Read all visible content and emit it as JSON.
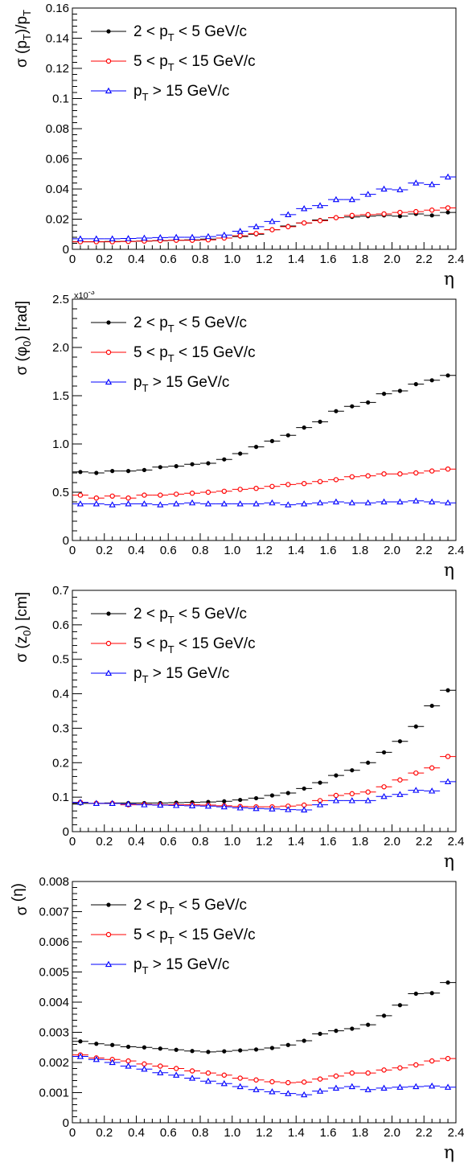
{
  "legend": [
    {
      "pre": "2 < p",
      "sub": "T",
      "post": " < 5 GeV/c",
      "color": "#000000",
      "marker": "dot"
    },
    {
      "pre": "5 < p",
      "sub": "T",
      "post": " < 15 GeV/c",
      "color": "#ff0000",
      "marker": "circle"
    },
    {
      "pre": "p",
      "sub": "T",
      "post": " > 15 GeV/c",
      "color": "#0000ff",
      "marker": "triangle"
    }
  ],
  "chart_data": [
    {
      "type": "scatter",
      "ylabel": {
        "parts": [
          "σ (p",
          "T",
          ")/p",
          "T"
        ]
      },
      "xlabel": "η",
      "xlim": [
        0,
        2.4
      ],
      "ylim": [
        0,
        0.16
      ],
      "yticks": [
        "0",
        "0.02",
        "0.04",
        "0.06",
        "0.08",
        "0.1",
        "0.12",
        "0.14",
        "0.16"
      ],
      "xticks": [
        "0",
        "0.2",
        "0.4",
        "0.6",
        "0.8",
        "1.0",
        "1.2",
        "1.4",
        "1.6",
        "1.8",
        "2.0",
        "2.2",
        "2.4"
      ],
      "exponent": "",
      "bin_width": 0.1,
      "x": [
        0.05,
        0.15,
        0.25,
        0.35,
        0.45,
        0.55,
        0.65,
        0.75,
        0.85,
        0.95,
        1.05,
        1.15,
        1.25,
        1.35,
        1.45,
        1.55,
        1.65,
        1.75,
        1.85,
        1.95,
        2.05,
        2.15,
        2.25,
        2.35
      ],
      "series": [
        {
          "values": [
            0.005,
            0.005,
            0.0052,
            0.0053,
            0.0055,
            0.0057,
            0.006,
            0.0063,
            0.0068,
            0.0075,
            0.0085,
            0.01,
            0.013,
            0.0155,
            0.0175,
            0.0195,
            0.021,
            0.0215,
            0.022,
            0.0225,
            0.022,
            0.0235,
            0.0225,
            0.0245
          ]
        },
        {
          "values": [
            0.005,
            0.005,
            0.005,
            0.0052,
            0.0055,
            0.0058,
            0.006,
            0.006,
            0.0063,
            0.0075,
            0.009,
            0.0105,
            0.013,
            0.015,
            0.0175,
            0.019,
            0.021,
            0.0225,
            0.023,
            0.0235,
            0.0245,
            0.025,
            0.026,
            0.0275
          ]
        },
        {
          "values": [
            0.007,
            0.007,
            0.007,
            0.0072,
            0.0075,
            0.0078,
            0.008,
            0.008,
            0.0085,
            0.0095,
            0.012,
            0.015,
            0.0185,
            0.023,
            0.027,
            0.029,
            0.033,
            0.033,
            0.0365,
            0.04,
            0.0395,
            0.044,
            0.043,
            0.048
          ]
        }
      ]
    },
    {
      "type": "scatter",
      "ylabel": {
        "parts": [
          "σ (φ",
          "0",
          ") [rad]"
        ]
      },
      "xlabel": "η",
      "xlim": [
        0,
        2.4
      ],
      "ylim": [
        0,
        2.5
      ],
      "yticks": [
        "0",
        "0.5",
        "1.0",
        "1.5",
        "2.0",
        "2.5"
      ],
      "xticks": [
        "0",
        "0.2",
        "0.4",
        "0.6",
        "0.8",
        "1.0",
        "1.2",
        "1.4",
        "1.6",
        "1.8",
        "2.0",
        "2.2",
        "2.4"
      ],
      "exponent": "x10-3",
      "bin_width": 0.1,
      "x": [
        0.05,
        0.15,
        0.25,
        0.35,
        0.45,
        0.55,
        0.65,
        0.75,
        0.85,
        0.95,
        1.05,
        1.15,
        1.25,
        1.35,
        1.45,
        1.55,
        1.65,
        1.75,
        1.85,
        1.95,
        2.05,
        2.15,
        2.25,
        2.35
      ],
      "series": [
        {
          "values": [
            0.71,
            0.7,
            0.72,
            0.72,
            0.73,
            0.76,
            0.77,
            0.79,
            0.8,
            0.84,
            0.9,
            0.97,
            1.03,
            1.09,
            1.17,
            1.23,
            1.34,
            1.39,
            1.43,
            1.52,
            1.55,
            1.62,
            1.66,
            1.71
          ]
        },
        {
          "values": [
            0.47,
            0.44,
            0.46,
            0.44,
            0.47,
            0.47,
            0.48,
            0.49,
            0.5,
            0.51,
            0.53,
            0.54,
            0.56,
            0.58,
            0.59,
            0.61,
            0.63,
            0.66,
            0.67,
            0.69,
            0.69,
            0.7,
            0.72,
            0.74
          ]
        },
        {
          "values": [
            0.38,
            0.38,
            0.37,
            0.38,
            0.38,
            0.37,
            0.38,
            0.39,
            0.38,
            0.38,
            0.38,
            0.38,
            0.39,
            0.37,
            0.38,
            0.39,
            0.4,
            0.39,
            0.39,
            0.4,
            0.4,
            0.41,
            0.4,
            0.39
          ]
        }
      ]
    },
    {
      "type": "scatter",
      "ylabel": {
        "parts": [
          "σ (z",
          "0",
          ") [cm]"
        ]
      },
      "xlabel": "η",
      "xlim": [
        0,
        2.4
      ],
      "ylim": [
        0,
        0.7
      ],
      "yticks": [
        "0",
        "0.1",
        "0.2",
        "0.3",
        "0.4",
        "0.5",
        "0.6",
        "0.7"
      ],
      "xticks": [
        "0",
        "0.2",
        "0.4",
        "0.6",
        "0.8",
        "1.0",
        "1.2",
        "1.4",
        "1.6",
        "1.8",
        "2.0",
        "2.2",
        "2.4"
      ],
      "exponent": "",
      "bin_width": 0.1,
      "x": [
        0.05,
        0.15,
        0.25,
        0.35,
        0.45,
        0.55,
        0.65,
        0.75,
        0.85,
        0.95,
        1.05,
        1.15,
        1.25,
        1.35,
        1.45,
        1.55,
        1.65,
        1.75,
        1.85,
        1.95,
        2.05,
        2.15,
        2.25,
        2.35
      ],
      "series": [
        {
          "values": [
            0.082,
            0.082,
            0.083,
            0.083,
            0.083,
            0.083,
            0.084,
            0.085,
            0.086,
            0.088,
            0.092,
            0.097,
            0.105,
            0.112,
            0.125,
            0.142,
            0.163,
            0.178,
            0.2,
            0.23,
            0.262,
            0.305,
            0.365,
            0.41
          ]
        },
        {
          "values": [
            0.085,
            0.082,
            0.082,
            0.078,
            0.079,
            0.078,
            0.078,
            0.078,
            0.077,
            0.075,
            0.073,
            0.072,
            0.072,
            0.074,
            0.077,
            0.09,
            0.105,
            0.11,
            0.115,
            0.13,
            0.15,
            0.17,
            0.185,
            0.218
          ]
        },
        {
          "values": [
            0.085,
            0.082,
            0.082,
            0.08,
            0.078,
            0.077,
            0.076,
            0.075,
            0.074,
            0.072,
            0.069,
            0.067,
            0.066,
            0.064,
            0.063,
            0.078,
            0.09,
            0.09,
            0.09,
            0.102,
            0.108,
            0.12,
            0.118,
            0.145
          ]
        }
      ]
    },
    {
      "type": "scatter",
      "ylabel": {
        "parts": [
          "σ",
          "",
          " (η)"
        ]
      },
      "xlabel": "η",
      "xlim": [
        0,
        2.4
      ],
      "ylim": [
        0,
        0.008
      ],
      "yticks": [
        "0",
        "0.001",
        "0.002",
        "0.003",
        "0.004",
        "0.005",
        "0.006",
        "0.007",
        "0.008"
      ],
      "xticks": [
        "0",
        "0.2",
        "0.4",
        "0.6",
        "0.8",
        "1.0",
        "1.2",
        "1.4",
        "1.6",
        "1.8",
        "2.0",
        "2.2",
        "2.4"
      ],
      "exponent": "",
      "bin_width": 0.1,
      "x": [
        0.05,
        0.15,
        0.25,
        0.35,
        0.45,
        0.55,
        0.65,
        0.75,
        0.85,
        0.95,
        1.05,
        1.15,
        1.25,
        1.35,
        1.45,
        1.55,
        1.65,
        1.75,
        1.85,
        1.95,
        2.05,
        2.15,
        2.25,
        2.35
      ],
      "series": [
        {
          "values": [
            0.0027,
            0.00262,
            0.00258,
            0.00252,
            0.0025,
            0.00246,
            0.00242,
            0.00238,
            0.00235,
            0.00237,
            0.0024,
            0.00243,
            0.00248,
            0.00258,
            0.00272,
            0.00295,
            0.00305,
            0.00312,
            0.00325,
            0.00355,
            0.0039,
            0.00428,
            0.0043,
            0.00465
          ]
        },
        {
          "values": [
            0.00225,
            0.00215,
            0.0021,
            0.00205,
            0.00195,
            0.00188,
            0.0018,
            0.00172,
            0.00165,
            0.00158,
            0.00148,
            0.00142,
            0.00136,
            0.00133,
            0.00135,
            0.00145,
            0.00155,
            0.00165,
            0.00165,
            0.00175,
            0.00182,
            0.00192,
            0.00205,
            0.00213
          ]
        },
        {
          "values": [
            0.0022,
            0.0021,
            0.002,
            0.00188,
            0.00178,
            0.00166,
            0.00158,
            0.00148,
            0.00138,
            0.0013,
            0.0012,
            0.0011,
            0.00103,
            0.00097,
            0.00093,
            0.00105,
            0.00115,
            0.0012,
            0.0011,
            0.00115,
            0.00118,
            0.0012,
            0.00122,
            0.00118
          ]
        }
      ]
    }
  ]
}
